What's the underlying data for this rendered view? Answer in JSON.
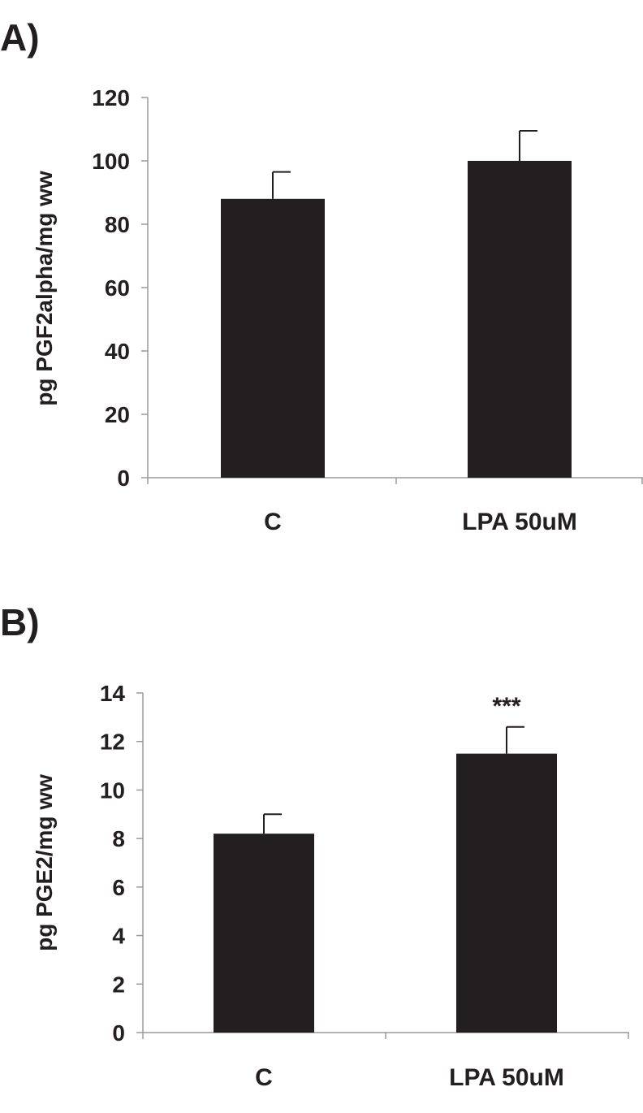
{
  "chart_data": [
    {
      "panel": "A)",
      "type": "bar",
      "categories": [
        "C",
        "LPA 50uM"
      ],
      "values": [
        88,
        100
      ],
      "errors": [
        8.5,
        9.5
      ],
      "ylabel": "pg PGF2alpha/mg ww",
      "xlabel": "",
      "ylim": [
        0,
        120
      ],
      "yticks": [
        "0",
        "20",
        "40",
        "60",
        "80",
        "100",
        "120"
      ],
      "annotations": [
        "",
        ""
      ],
      "bar_color": "#231f20",
      "grid": false
    },
    {
      "panel": "B)",
      "type": "bar",
      "categories": [
        "C",
        "LPA 50uM"
      ],
      "values": [
        8.2,
        11.5
      ],
      "errors": [
        0.8,
        1.1
      ],
      "ylabel": "pg PGE2/mg ww",
      "xlabel": "",
      "ylim": [
        0,
        14
      ],
      "yticks": [
        "0",
        "2",
        "4",
        "6",
        "8",
        "10",
        "12",
        "14"
      ],
      "annotations": [
        "",
        "***"
      ],
      "bar_color": "#231f20",
      "grid": false
    }
  ]
}
